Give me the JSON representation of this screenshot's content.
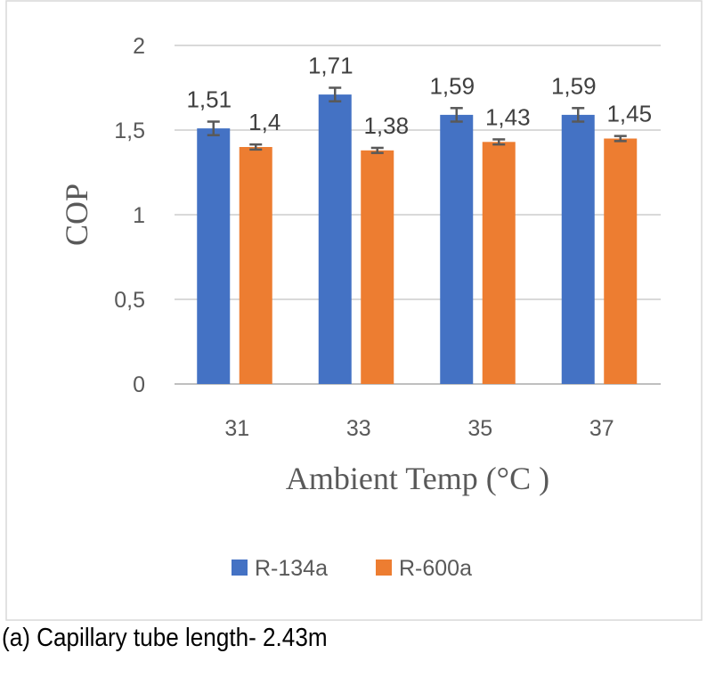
{
  "chart_data": {
    "type": "bar",
    "title": "",
    "xlabel": "Ambient Temp (°C )",
    "ylabel": "COP",
    "ylim": [
      0,
      2
    ],
    "yticks": [
      0,
      0.5,
      1,
      1.5,
      2
    ],
    "ytick_labels": [
      "0",
      "0,5",
      "1",
      "1,5",
      "2"
    ],
    "categories": [
      "31",
      "33",
      "35",
      "37"
    ],
    "grid": true,
    "legend_position": "bottom",
    "series": [
      {
        "name": "R-134a",
        "color": "#4472C4",
        "values": [
          1.51,
          1.71,
          1.59,
          1.59
        ],
        "labels": [
          "1,51",
          "1,71",
          "1,59",
          "1,59"
        ],
        "error": [
          0.04,
          0.04,
          0.04,
          0.04
        ]
      },
      {
        "name": "R-600a",
        "color": "#ED7D31",
        "values": [
          1.4,
          1.38,
          1.43,
          1.45
        ],
        "labels": [
          "1,4",
          "1,38",
          "1,43",
          "1,45"
        ],
        "error": [
          0.015,
          0.015,
          0.015,
          0.015
        ]
      }
    ]
  },
  "caption": "(a) Capillary tube length- 2.43m"
}
